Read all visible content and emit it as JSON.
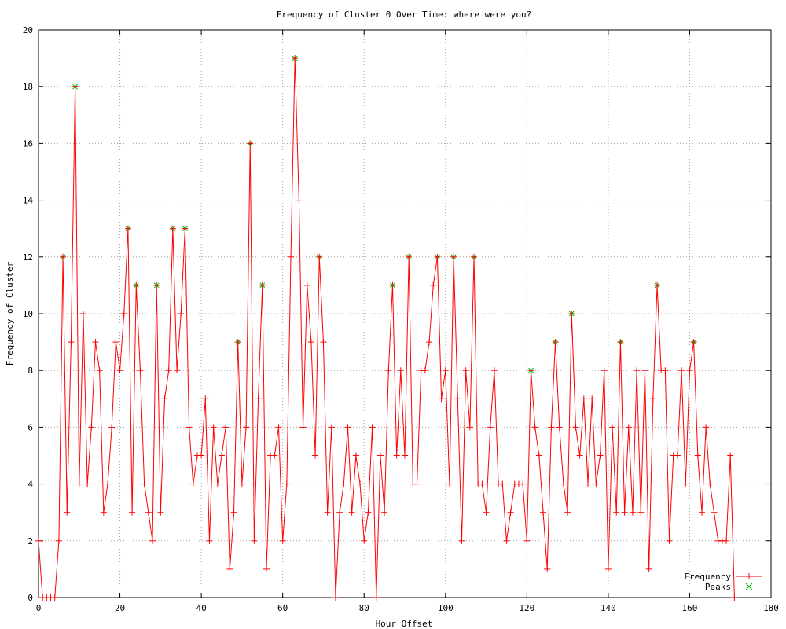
{
  "chart_data": {
    "type": "line",
    "title": "Frequency of Cluster 0 Over Time: where were you?",
    "xlabel": "Hour Offset",
    "ylabel": "Frequency of Cluster",
    "xlim": [
      0,
      180
    ],
    "ylim": [
      0,
      20
    ],
    "xticks": [
      0,
      20,
      40,
      60,
      80,
      100,
      120,
      140,
      160,
      180
    ],
    "yticks": [
      0,
      2,
      4,
      6,
      8,
      10,
      12,
      14,
      16,
      18,
      20
    ],
    "grid": true,
    "legend_position": "bottom-right",
    "colors": {
      "frequency": "#ff0000",
      "peaks": "#00b000"
    },
    "series": [
      {
        "name": "Frequency",
        "style": "linespoints",
        "x": [
          0,
          1,
          2,
          3,
          4,
          5,
          6,
          7,
          8,
          9,
          10,
          11,
          12,
          13,
          14,
          15,
          16,
          17,
          18,
          19,
          20,
          21,
          22,
          23,
          24,
          25,
          26,
          27,
          28,
          29,
          30,
          31,
          32,
          33,
          34,
          35,
          36,
          37,
          38,
          39,
          40,
          41,
          42,
          43,
          44,
          45,
          46,
          47,
          48,
          49,
          50,
          51,
          52,
          53,
          54,
          55,
          56,
          57,
          58,
          59,
          60,
          61,
          62,
          63,
          64,
          65,
          66,
          67,
          68,
          69,
          70,
          71,
          72,
          73,
          74,
          75,
          76,
          77,
          78,
          79,
          80,
          81,
          82,
          83,
          84,
          85,
          86,
          87,
          88,
          89,
          90,
          91,
          92,
          93,
          94,
          95,
          96,
          97,
          98,
          99,
          100,
          101,
          102,
          103,
          104,
          105,
          106,
          107,
          108,
          109,
          110,
          111,
          112,
          113,
          114,
          115,
          116,
          117,
          118,
          119,
          120,
          121,
          122,
          123,
          124,
          125,
          126,
          127,
          128,
          129,
          130,
          131,
          132,
          133,
          134,
          135,
          136,
          137,
          138,
          139,
          140,
          141,
          142,
          143,
          144,
          145,
          146,
          147,
          148,
          149,
          150,
          151,
          152,
          153,
          154,
          155,
          156,
          157,
          158,
          159,
          160,
          161,
          162,
          163,
          164,
          165,
          166,
          167,
          168,
          169,
          170,
          171
        ],
        "y": [
          2,
          0,
          0,
          0,
          0,
          2,
          12,
          3,
          9,
          18,
          4,
          10,
          4,
          6,
          9,
          8,
          3,
          4,
          6,
          9,
          8,
          10,
          13,
          3,
          11,
          8,
          4,
          3,
          2,
          11,
          3,
          7,
          8,
          13,
          8,
          10,
          13,
          6,
          4,
          5,
          5,
          7,
          2,
          6,
          4,
          5,
          6,
          1,
          3,
          9,
          4,
          6,
          16,
          2,
          7,
          11,
          1,
          5,
          5,
          6,
          2,
          4,
          12,
          19,
          14,
          6,
          11,
          9,
          5,
          12,
          9,
          3,
          6,
          0,
          3,
          4,
          6,
          3,
          5,
          4,
          2,
          3,
          6,
          0,
          5,
          3,
          8,
          11,
          5,
          8,
          5,
          12,
          4,
          4,
          8,
          8,
          9,
          11,
          12,
          7,
          8,
          4,
          12,
          7,
          2,
          8,
          6,
          12,
          4,
          4,
          3,
          6,
          8,
          4,
          4,
          2,
          3,
          4,
          4,
          4,
          2,
          8,
          6,
          5,
          3,
          1,
          6,
          9,
          6,
          4,
          3,
          10,
          6,
          5,
          7,
          4,
          7,
          4,
          5,
          8,
          1,
          6,
          3,
          9,
          3,
          6,
          3,
          8,
          3,
          8,
          1,
          7,
          11,
          8,
          8,
          2,
          5,
          5,
          8,
          4,
          8,
          9,
          5,
          3,
          6,
          4,
          3,
          2,
          2,
          2,
          5,
          0
        ]
      },
      {
        "name": "Peaks",
        "style": "points",
        "x": [
          6,
          9,
          22,
          24,
          29,
          33,
          36,
          49,
          52,
          55,
          63,
          69,
          87,
          91,
          98,
          102,
          107,
          121,
          127,
          131,
          143,
          152,
          161
        ],
        "y": [
          12,
          18,
          13,
          11,
          11,
          13,
          13,
          9,
          16,
          11,
          19,
          12,
          11,
          12,
          12,
          12,
          12,
          8,
          9,
          10,
          9,
          11,
          9
        ]
      }
    ]
  }
}
